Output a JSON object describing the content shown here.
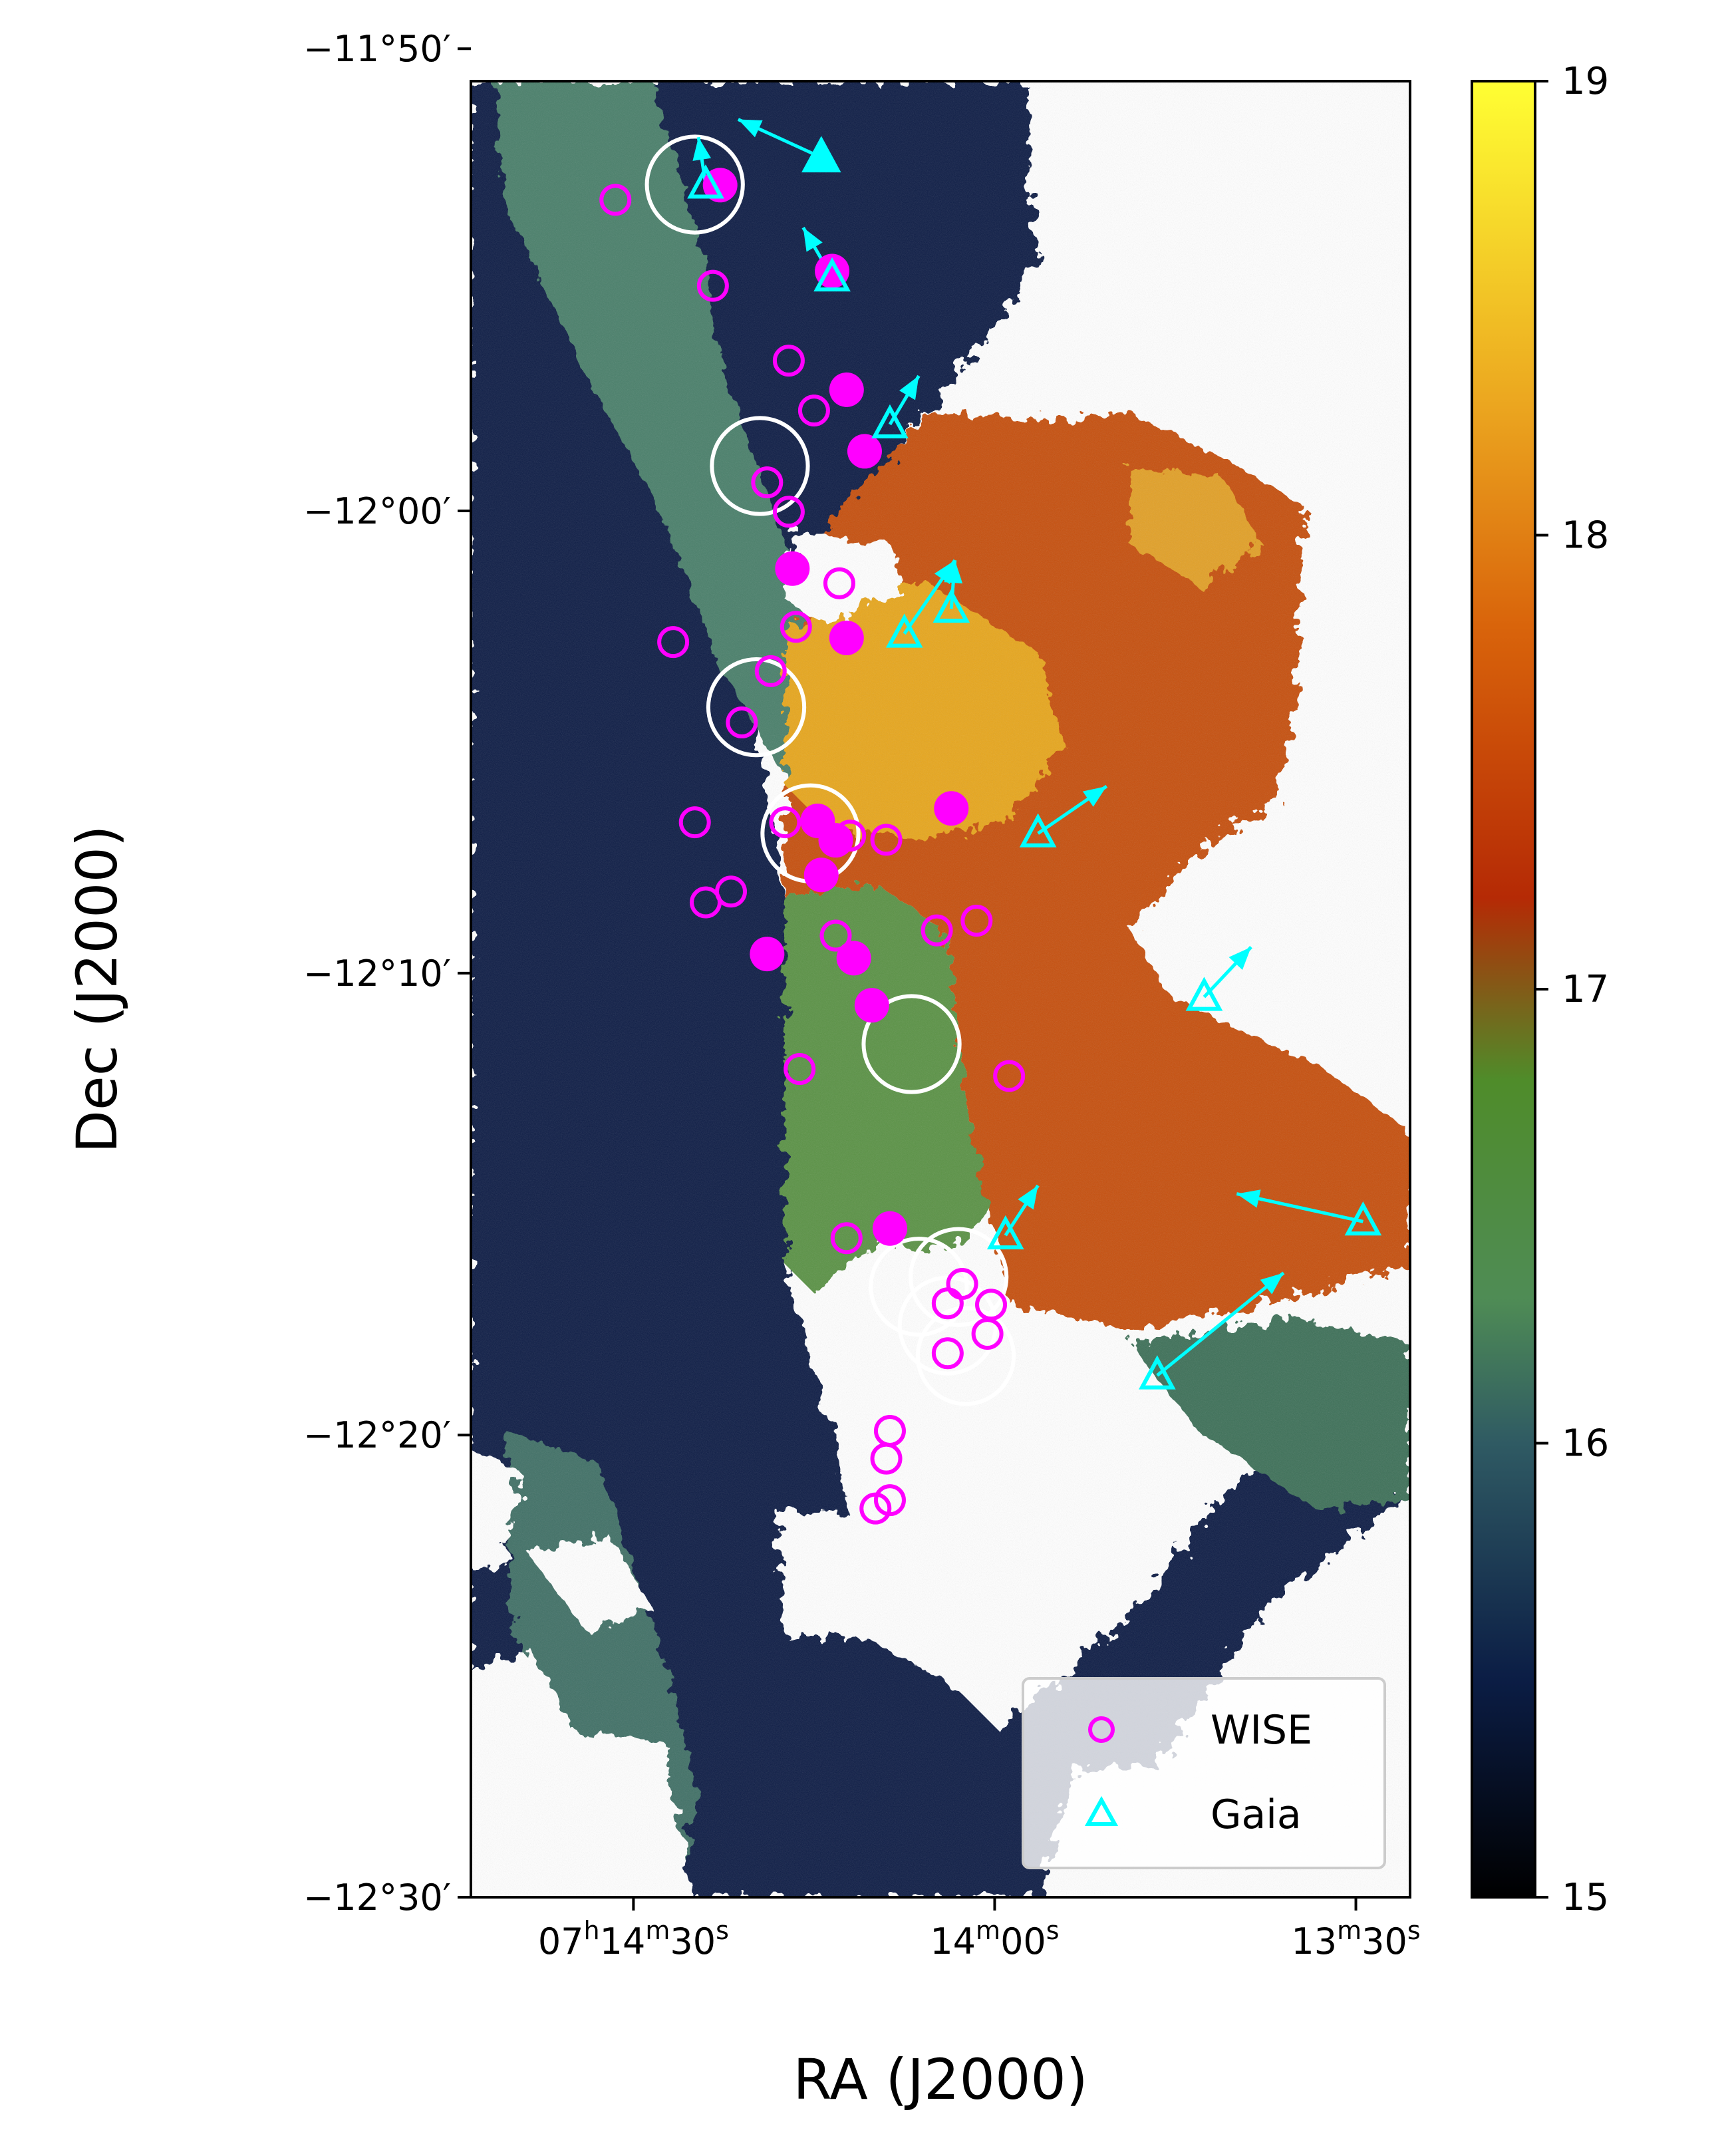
{
  "chart_data": {
    "type": "scatter",
    "title": "",
    "xlabel": "RA (J2000)",
    "ylabel": "Dec (J2000)",
    "xlim_arcsec": [
      -45,
      215
    ],
    "ylim_arcmin": [
      -11.845,
      -12.5
    ],
    "x_ticks": [
      {
        "value": 0,
        "label": "07h14m30s",
        "parts": [
          "07",
          "h",
          "14",
          "m",
          "30",
          "s"
        ]
      },
      {
        "value": 100,
        "label": "14m00s",
        "parts": [
          "14",
          "m",
          "00",
          "s"
        ]
      },
      {
        "value": 200,
        "label": "13m30s",
        "parts": [
          "13",
          "m",
          "30",
          "s"
        ]
      }
    ],
    "y_ticks": [
      {
        "value": -11.8333,
        "label": "−11°50′"
      },
      {
        "value": -12.0,
        "label": "−12°00′"
      },
      {
        "value": -12.1667,
        "label": "−12°10′"
      },
      {
        "value": -12.3333,
        "label": "−12°20′"
      },
      {
        "value": -12.5,
        "label": "−12°30′"
      }
    ],
    "colorbar": {
      "range": [
        15,
        19
      ],
      "ticks": [
        "19",
        "18",
        "17",
        "16",
        "15"
      ],
      "colors": [
        "#000000",
        "#0b1d45",
        "#2f5a63",
        "#4f8c55",
        "#4f8c2a",
        "#b52a05",
        "#d9640b",
        "#eba51f",
        "#ffff33"
      ]
    },
    "legend": {
      "placement": "lower right",
      "entries": [
        {
          "label": "WISE",
          "marker": "open-circle",
          "color": "#ff00ff"
        },
        {
          "label": "Gaia",
          "marker": "open-triangle",
          "color": "#00ffff"
        }
      ]
    },
    "wise_open": [
      [
        5,
        -11.8878
      ],
      [
        -22,
        -11.9188
      ],
      [
        -43,
        -11.9458
      ],
      [
        -50,
        -11.9638
      ],
      [
        -37,
        -11.9897
      ],
      [
        -43,
        -12.0003
      ],
      [
        -57,
        -12.0261
      ],
      [
        -45,
        -12.0418
      ],
      [
        -11,
        -12.0473
      ],
      [
        -38,
        -12.0578
      ],
      [
        -30,
        -12.0763
      ],
      [
        -42,
        -12.1123
      ],
      [
        -17,
        -12.1123
      ],
      [
        -60,
        -12.1171
      ],
      [
        -70,
        -12.1186
      ],
      [
        -27,
        -12.1373
      ],
      [
        -20,
        -12.1412
      ],
      [
        -84,
        -12.1513
      ],
      [
        -95,
        -12.1478
      ],
      [
        -56,
        -12.1532
      ],
      [
        -46,
        -12.2013
      ],
      [
        -104,
        -12.2038
      ],
      [
        -59,
        -12.2623
      ],
      [
        -91,
        -12.2788
      ],
      [
        -87,
        -12.2858
      ],
      [
        -99,
        -12.2863
      ],
      [
        -98,
        -12.2968
      ],
      [
        -87,
        -12.3038
      ],
      [
        -71,
        -12.3318
      ],
      [
        -70,
        -12.3418
      ],
      [
        -67,
        -12.3598
      ],
      [
        -71,
        -12.3568
      ]
    ],
    "wise_filled": [
      [
        -24,
        -11.8825
      ],
      [
        -55,
        -11.9135
      ],
      [
        -59,
        -11.9563
      ],
      [
        -64,
        -11.9785
      ],
      [
        -44,
        -12.0208
      ],
      [
        -59,
        -12.0458
      ],
      [
        -51,
        -12.1118
      ],
      [
        -56,
        -12.1188
      ],
      [
        -52,
        -12.1313
      ],
      [
        -61,
        -12.1613
      ],
      [
        -66,
        -12.1783
      ],
      [
        -71,
        -12.2588
      ],
      [
        -88,
        -12.1073
      ],
      [
        -37,
        -12.1598
      ]
    ],
    "gaia_open": [
      [
        -20,
        -11.8823
      ],
      [
        -55,
        -11.9158
      ],
      [
        -71,
        -11.9688
      ],
      [
        -88,
        -12.0353
      ],
      [
        -75,
        -12.0443
      ],
      [
        -112,
        -12.1163
      ],
      [
        -158,
        -12.1753
      ],
      [
        -202,
        -12.2563
      ],
      [
        -103,
        -12.2613
      ],
      [
        -145,
        -12.3118
      ]
    ],
    "gaia_filled": [
      [
        -52,
        -11.8725
      ]
    ],
    "proper_motion_vectors": [
      [
        [
          -20,
          -11.8823
        ],
        [
          -18,
          -11.8652
        ]
      ],
      [
        [
          -55,
          -11.9158
        ],
        [
          -47,
          -11.8978
        ]
      ],
      [
        [
          -71,
          -11.9688
        ],
        [
          -79,
          -11.9513
        ]
      ],
      [
        [
          -88,
          -12.0353
        ],
        [
          -89,
          -12.0178
        ]
      ],
      [
        [
          -75,
          -12.0443
        ],
        [
          -89,
          -12.0178
        ]
      ],
      [
        [
          -112,
          -12.1163
        ],
        [
          -131,
          -12.0993
        ]
      ],
      [
        [
          -158,
          -12.1753
        ],
        [
          -171,
          -12.1573
        ]
      ],
      [
        [
          -202,
          -12.2563
        ],
        [
          -167,
          -12.2463
        ]
      ],
      [
        [
          -103,
          -12.2613
        ],
        [
          -112,
          -12.2433
        ]
      ],
      [
        [
          -145,
          -12.3118
        ],
        [
          -180,
          -12.2748
        ]
      ],
      [
        [
          -52,
          -11.8725
        ],
        [
          -29,
          -11.8588
        ]
      ]
    ],
    "white_rings": [
      [
        -17,
        -11.8823,
        16
      ],
      [
        -35,
        -11.9838,
        16
      ],
      [
        -34,
        -12.0708,
        16
      ],
      [
        -49,
        -12.1163,
        16
      ],
      [
        -77,
        -12.1923,
        16
      ],
      [
        -90,
        -12.2763,
        16
      ],
      [
        -79,
        -12.2798,
        16
      ],
      [
        -92,
        -12.3048,
        16
      ],
      [
        -87,
        -12.2938,
        16
      ]
    ]
  }
}
